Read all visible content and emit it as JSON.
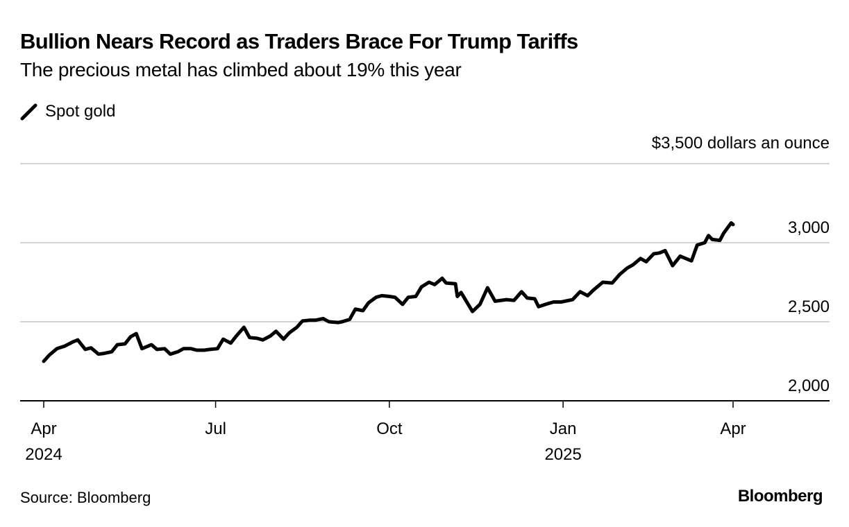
{
  "header": {
    "title": "Bullion Nears Record as Traders Brace For Trump Tariffs",
    "subtitle": "The precious metal has climbed about 19% this year"
  },
  "footer": {
    "source": "Source: Bloomberg",
    "brand": "Bloomberg"
  },
  "chart_data": {
    "type": "line",
    "title": "Bullion Nears Record as Traders Brace For Trump Tariffs",
    "subtitle": "The precious metal has climbed about 19% this year",
    "xlabel": "",
    "ylabel": "dollars an ounce",
    "unit_label": "$3,500 dollars an ounce",
    "legend": [
      {
        "name": "Spot gold",
        "color": "#000000"
      }
    ],
    "legend_position": "top-left",
    "grid": true,
    "ylim": [
      2000,
      3500
    ],
    "y_ticks": [
      {
        "value": 2000,
        "label": "2,000"
      },
      {
        "value": 2500,
        "label": "2,500"
      },
      {
        "value": 3000,
        "label": "3,000"
      },
      {
        "value": 3500,
        "label": "$3,500 dollars an ounce"
      }
    ],
    "xlim": [
      "2024-04-01",
      "2025-05-31"
    ],
    "x_ticks": [
      {
        "date": "2024-04-01",
        "label": "Apr",
        "sublabel": "2024"
      },
      {
        "date": "2024-07-01",
        "label": "Jul",
        "sublabel": ""
      },
      {
        "date": "2024-10-01",
        "label": "Oct",
        "sublabel": ""
      },
      {
        "date": "2025-01-01",
        "label": "Jan",
        "sublabel": "2025"
      },
      {
        "date": "2025-04-01",
        "label": "Apr",
        "sublabel": ""
      }
    ],
    "series": [
      {
        "name": "Spot gold",
        "color": "#000000",
        "points": [
          [
            "2024-04-01",
            2250
          ],
          [
            "2024-04-04",
            2290
          ],
          [
            "2024-04-08",
            2330
          ],
          [
            "2024-04-12",
            2345
          ],
          [
            "2024-04-16",
            2370
          ],
          [
            "2024-04-19",
            2385
          ],
          [
            "2024-04-23",
            2325
          ],
          [
            "2024-04-26",
            2335
          ],
          [
            "2024-04-30",
            2295
          ],
          [
            "2024-05-03",
            2300
          ],
          [
            "2024-05-07",
            2310
          ],
          [
            "2024-05-10",
            2355
          ],
          [
            "2024-05-14",
            2360
          ],
          [
            "2024-05-17",
            2405
          ],
          [
            "2024-05-20",
            2425
          ],
          [
            "2024-05-23",
            2330
          ],
          [
            "2024-05-28",
            2355
          ],
          [
            "2024-05-31",
            2325
          ],
          [
            "2024-06-04",
            2330
          ],
          [
            "2024-06-07",
            2295
          ],
          [
            "2024-06-11",
            2310
          ],
          [
            "2024-06-14",
            2330
          ],
          [
            "2024-06-18",
            2330
          ],
          [
            "2024-06-21",
            2320
          ],
          [
            "2024-06-25",
            2320
          ],
          [
            "2024-06-28",
            2325
          ],
          [
            "2024-07-02",
            2330
          ],
          [
            "2024-07-05",
            2390
          ],
          [
            "2024-07-09",
            2365
          ],
          [
            "2024-07-12",
            2410
          ],
          [
            "2024-07-16",
            2465
          ],
          [
            "2024-07-19",
            2400
          ],
          [
            "2024-07-23",
            2395
          ],
          [
            "2024-07-26",
            2385
          ],
          [
            "2024-07-30",
            2410
          ],
          [
            "2024-08-02",
            2440
          ],
          [
            "2024-08-06",
            2390
          ],
          [
            "2024-08-09",
            2430
          ],
          [
            "2024-08-13",
            2465
          ],
          [
            "2024-08-16",
            2505
          ],
          [
            "2024-08-20",
            2510
          ],
          [
            "2024-08-23",
            2510
          ],
          [
            "2024-08-27",
            2520
          ],
          [
            "2024-08-30",
            2500
          ],
          [
            "2024-09-04",
            2495
          ],
          [
            "2024-09-06",
            2500
          ],
          [
            "2024-09-10",
            2515
          ],
          [
            "2024-09-13",
            2580
          ],
          [
            "2024-09-17",
            2570
          ],
          [
            "2024-09-20",
            2620
          ],
          [
            "2024-09-24",
            2655
          ],
          [
            "2024-09-27",
            2665
          ],
          [
            "2024-10-01",
            2660
          ],
          [
            "2024-10-04",
            2655
          ],
          [
            "2024-10-08",
            2610
          ],
          [
            "2024-10-11",
            2655
          ],
          [
            "2024-10-15",
            2660
          ],
          [
            "2024-10-18",
            2720
          ],
          [
            "2024-10-22",
            2750
          ],
          [
            "2024-10-25",
            2735
          ],
          [
            "2024-10-29",
            2775
          ],
          [
            "2024-10-31",
            2745
          ],
          [
            "2024-11-05",
            2740
          ],
          [
            "2024-11-06",
            2660
          ],
          [
            "2024-11-08",
            2685
          ],
          [
            "2024-11-14",
            2565
          ],
          [
            "2024-11-18",
            2610
          ],
          [
            "2024-11-22",
            2715
          ],
          [
            "2024-11-26",
            2630
          ],
          [
            "2024-12-02",
            2640
          ],
          [
            "2024-12-06",
            2635
          ],
          [
            "2024-12-10",
            2690
          ],
          [
            "2024-12-13",
            2650
          ],
          [
            "2024-12-17",
            2645
          ],
          [
            "2024-12-19",
            2595
          ],
          [
            "2024-12-24",
            2615
          ],
          [
            "2024-12-27",
            2625
          ],
          [
            "2024-12-31",
            2625
          ],
          [
            "2025-01-06",
            2640
          ],
          [
            "2025-01-10",
            2690
          ],
          [
            "2025-01-14",
            2665
          ],
          [
            "2025-01-17",
            2700
          ],
          [
            "2025-01-22",
            2750
          ],
          [
            "2025-01-27",
            2745
          ],
          [
            "2025-01-31",
            2800
          ],
          [
            "2025-02-04",
            2840
          ],
          [
            "2025-02-07",
            2860
          ],
          [
            "2025-02-11",
            2900
          ],
          [
            "2025-02-14",
            2880
          ],
          [
            "2025-02-18",
            2930
          ],
          [
            "2025-02-21",
            2935
          ],
          [
            "2025-02-24",
            2950
          ],
          [
            "2025-02-28",
            2855
          ],
          [
            "2025-03-04",
            2915
          ],
          [
            "2025-03-10",
            2885
          ],
          [
            "2025-03-13",
            2985
          ],
          [
            "2025-03-17",
            3000
          ],
          [
            "2025-03-19",
            3045
          ],
          [
            "2025-03-21",
            3020
          ],
          [
            "2025-03-25",
            3015
          ],
          [
            "2025-03-27",
            3060
          ],
          [
            "2025-03-31",
            3125
          ],
          [
            "2025-04-01",
            3115
          ]
        ]
      }
    ]
  }
}
